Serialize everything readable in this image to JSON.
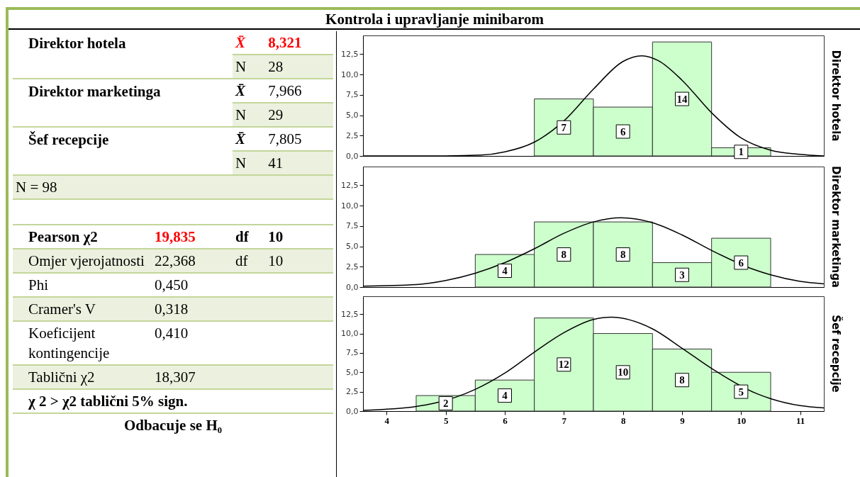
{
  "chart_data": [
    {
      "type": "other",
      "title": "Kontrola i upravljanje minibarom",
      "annotations": [
        "Direktor hotela",
        "X̄",
        "8,321",
        "N",
        "28",
        "Direktor marketinga",
        "X̄",
        "7,966",
        "N",
        "29",
        "Šef recepcije",
        "X̄",
        "7,805",
        "N",
        "41",
        "N = 98",
        "Pearson χ2",
        "19,835",
        "df",
        "10",
        "Omjer vjerojatnosti",
        "22,368",
        "df",
        "10",
        "Phi",
        "0,450",
        "Cramer's V",
        "0,318",
        "Koeficijent kontingencije",
        "0,410",
        "Tablični χ2",
        "18,307",
        "χ 2 > χ2 tablični 5% sign.",
        "Odbacuje se H₀"
      ]
    },
    {
      "type": "histogram",
      "ylabel": "Direktor hotela",
      "bins": [
        6.5,
        7.5,
        8.5,
        9.5,
        10.5
      ],
      "values": [
        7,
        6,
        14,
        1
      ],
      "value_labels": [
        "7",
        "6",
        "14",
        "1"
      ],
      "color": "#ccffcc",
      "xlim": [
        3.6,
        11.4
      ],
      "xticks": [
        4,
        5,
        6,
        7,
        8,
        9,
        10,
        11
      ],
      "ylim": [
        0,
        14.8
      ],
      "yticks": [
        {
          "value": 0,
          "label": "0,0"
        },
        {
          "value": 2.5,
          "label": "2,5"
        },
        {
          "value": 5,
          "label": "5,0"
        },
        {
          "value": 7.5,
          "label": "7,5"
        },
        {
          "value": 10,
          "label": "10,0"
        },
        {
          "value": 12.5,
          "label": "12,5"
        }
      ],
      "tick_labels": "y",
      "grid": false,
      "series": [
        {
          "type": "line",
          "color": "#000000",
          "x": [
            3.6,
            5,
            5.6,
            6,
            6.5,
            7,
            7.5,
            8,
            8.32,
            8.6,
            9,
            9.5,
            10,
            10.5,
            11,
            11.4
          ],
          "values": [
            0,
            0,
            0.1,
            0.5,
            1.7,
            4.3,
            8.2,
            11.6,
            12.3,
            11.7,
            9.3,
            5.3,
            2.2,
            0.7,
            0.2,
            0
          ]
        }
      ]
    },
    {
      "type": "histogram",
      "ylabel": "Direktor marketinga",
      "bins": [
        5.5,
        6.5,
        7.5,
        8.5,
        9.5,
        10.5
      ],
      "values": [
        4,
        8,
        8,
        3,
        6
      ],
      "value_labels": [
        "4",
        "8",
        "8",
        "3",
        "6"
      ],
      "color": "#ccffcc",
      "xlim": [
        3.6,
        11.4
      ],
      "xticks": [
        4,
        5,
        6,
        7,
        8,
        9,
        10,
        11
      ],
      "ylim": [
        0,
        14.8
      ],
      "yticks": [
        {
          "value": 0,
          "label": "0,0"
        },
        {
          "value": 2.5,
          "label": "2,5"
        },
        {
          "value": 5,
          "label": "5,0"
        },
        {
          "value": 7.5,
          "label": "7,5"
        },
        {
          "value": 10,
          "label": "10,0"
        },
        {
          "value": 12.5,
          "label": "12,5"
        }
      ],
      "tick_labels": "y",
      "grid": false,
      "series": [
        {
          "type": "line",
          "color": "#000000",
          "x": [
            3.6,
            4.5,
            5,
            5.5,
            6,
            6.5,
            7,
            7.5,
            7.97,
            8.5,
            9,
            9.5,
            10.2,
            10.5,
            11,
            11.4
          ],
          "values": [
            0.1,
            0.3,
            0.8,
            1.7,
            3.0,
            4.7,
            6.6,
            8.0,
            8.5,
            7.9,
            6.4,
            4.5,
            2.2,
            1.5,
            0.7,
            0.4
          ]
        }
      ]
    },
    {
      "type": "histogram",
      "ylabel": "Šef recepcije",
      "bins": [
        4.5,
        5.5,
        6.5,
        7.5,
        8.5,
        9.5,
        10.5
      ],
      "values": [
        2,
        4,
        12,
        10,
        8,
        5
      ],
      "value_labels": [
        "2",
        "4",
        "12",
        "10",
        "8",
        "5"
      ],
      "color": "#ccffcc",
      "xlim": [
        3.6,
        11.4
      ],
      "xticks": [
        4,
        5,
        6,
        7,
        8,
        9,
        10,
        11
      ],
      "ylim": [
        0,
        14.8
      ],
      "yticks": [
        {
          "value": 0,
          "label": "0,0"
        },
        {
          "value": 2.5,
          "label": "2,5"
        },
        {
          "value": 5,
          "label": "5,0"
        },
        {
          "value": 7.5,
          "label": "7,5"
        },
        {
          "value": 10,
          "label": "10,0"
        },
        {
          "value": 12.5,
          "label": "12,5"
        }
      ],
      "grid": false,
      "series": [
        {
          "type": "line",
          "color": "#000000",
          "x": [
            3.6,
            4.5,
            4.8,
            5.5,
            6,
            6.5,
            7,
            7.5,
            7.8,
            8.5,
            9,
            9.5,
            10.25,
            10.5,
            11,
            11.4
          ],
          "values": [
            0.1,
            0.6,
            1.0,
            2.8,
            4.9,
            7.6,
            10.1,
            11.8,
            12.1,
            10.6,
            8.1,
            5.5,
            2.3,
            1.6,
            0.7,
            0.4
          ]
        }
      ]
    }
  ]
}
